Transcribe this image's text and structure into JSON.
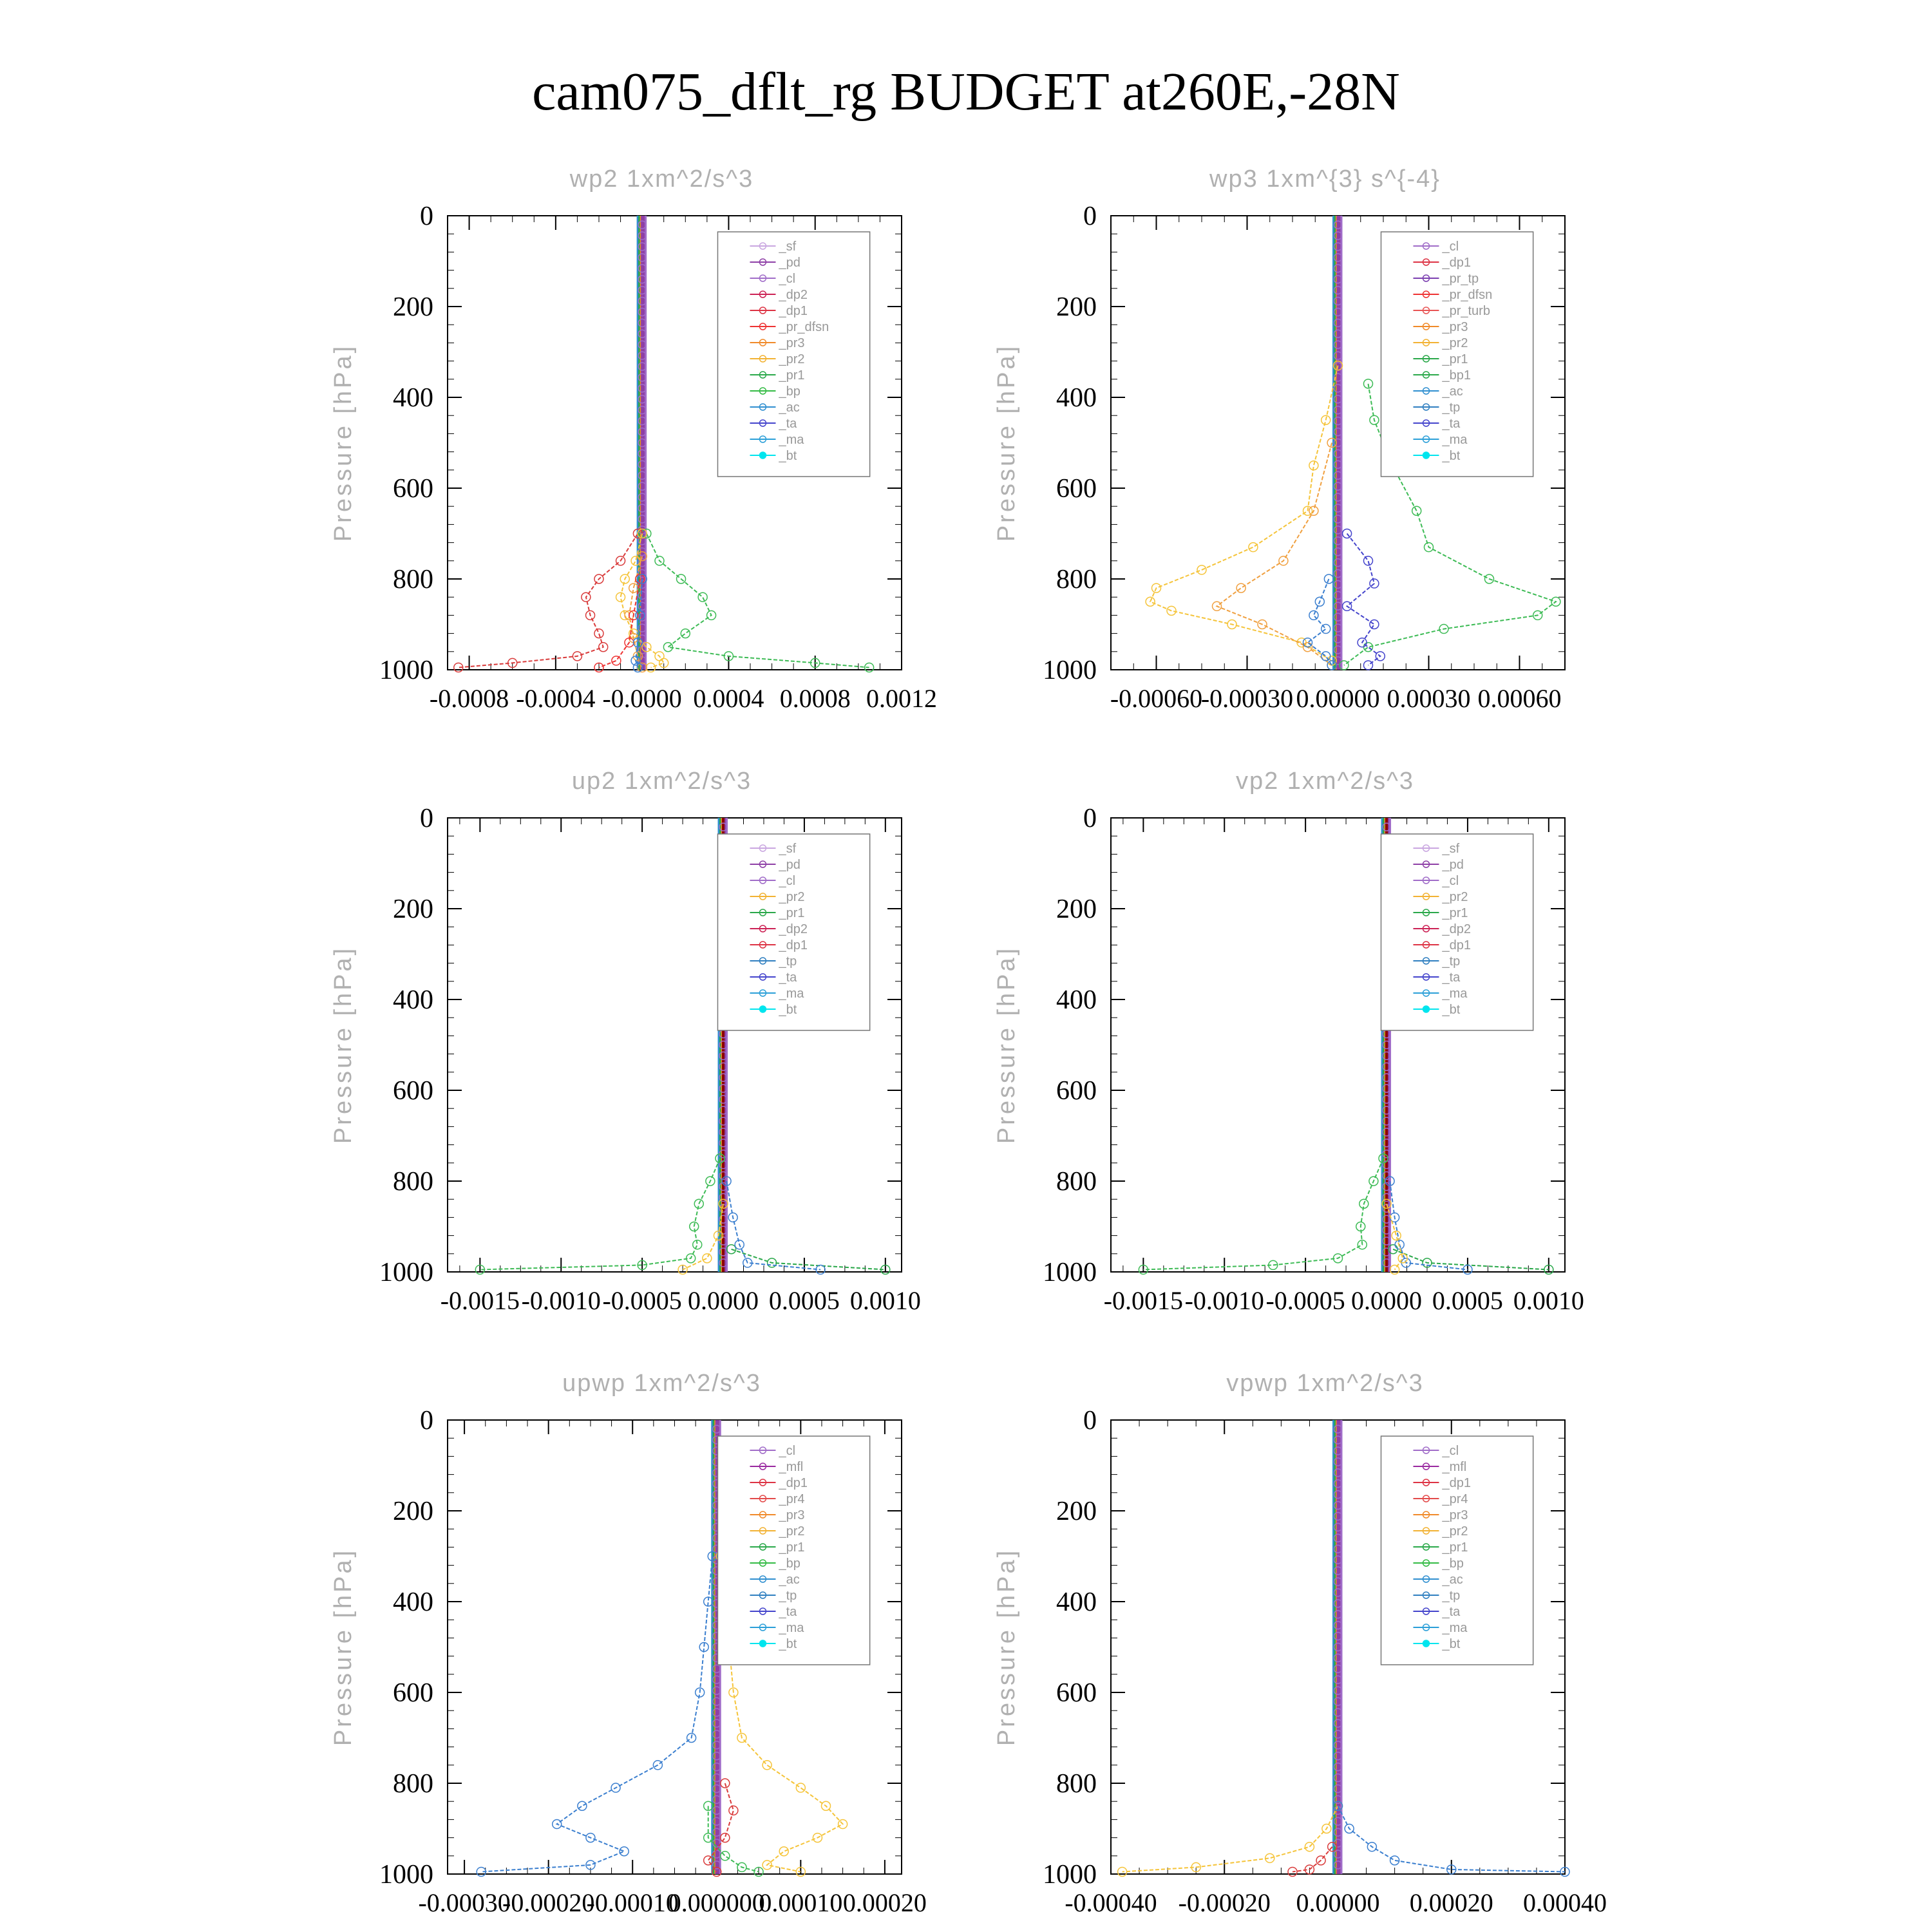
{
  "figure": {
    "title": "cam075_dflt_rg  BUDGET at260E,-28N"
  },
  "colors": {
    "_sf": "#c9a6e0",
    "_pd": "#8e3fa6",
    "_cl": "#a06cc8",
    "_dp2": "#cc2255",
    "_dp1": "#dd3344",
    "_pr_dfsn": "#ee3333",
    "_pr3": "#f08a2a",
    "_pr2": "#f2b233",
    "_pr1": "#2aa84a",
    "_bp": "#33bb44",
    "_ac": "#2f8fd0",
    "_ta": "#4444cc",
    "_ma": "#2b9fd8",
    "_bt": "#00e5ee",
    "_tp": "#2f7fc0",
    "_mfl": "#9a2aa0",
    "_pr4": "#e34a4a",
    "_pr_tp": "#7b3fb0",
    "_pr_turb": "#e85555",
    "_bp1": "#2aa84a",
    "axis": "#000000",
    "label_gray": "#b0b0b0",
    "col_yellow": "#f5c43a",
    "col_green": "#3dbb55",
    "col_orange": "#f0a040",
    "col_red": "#d93b3b",
    "col_blue": "#3b7fcf",
    "col_darkred": "#8b0000"
  },
  "chart_data": [
    {
      "type": "line",
      "title": "wp2   1xm^2/s^3",
      "ylabel": "Pressure [hPa]",
      "xlim": [
        -0.0009,
        0.0012
      ],
      "ylim": [
        1000,
        0
      ],
      "xticks": [
        -0.0008,
        -0.0004,
        0.0,
        0.0004,
        0.0008,
        0.0012
      ],
      "xtick_labels": [
        "-0.0008",
        "-0.0004",
        "-0.0000",
        "0.0004",
        "0.0008",
        "0.0012"
      ],
      "yticks": [
        0,
        200,
        400,
        600,
        800,
        1000
      ],
      "ytick_labels": [
        "0",
        "200",
        "400",
        "600",
        "800",
        "1000"
      ],
      "legend": [
        "_sf",
        "_pd",
        "_cl",
        "_dp2",
        "_dp1",
        "_pr_dfsn",
        "_pr3",
        "_pr2",
        "_pr1",
        "_bp",
        "_ac",
        "_ta",
        "_ma",
        "_bt"
      ],
      "legend_placement": "top-right",
      "series": [
        {
          "name": "_bp",
          "color_key": "col_green",
          "p": [
            700,
            760,
            800,
            840,
            880,
            920,
            950,
            970,
            985,
            995
          ],
          "x": [
            2e-05,
            8e-05,
            0.00018,
            0.00028,
            0.00032,
            0.0002,
            0.00012,
            0.0004,
            0.0008,
            0.00105
          ]
        },
        {
          "name": "_dp1",
          "color_key": "col_red",
          "p": [
            700,
            760,
            800,
            840,
            880,
            920,
            950,
            970,
            985,
            995
          ],
          "x": [
            -2e-05,
            -0.0001,
            -0.0002,
            -0.00026,
            -0.00024,
            -0.0002,
            -0.00018,
            -0.0003,
            -0.0006,
            -0.00085
          ]
        },
        {
          "name": "_pr2",
          "color_key": "col_yellow",
          "p": [
            700,
            760,
            800,
            840,
            880,
            920,
            950,
            970,
            985,
            995
          ],
          "x": [
            0.0,
            -3e-05,
            -8e-05,
            -0.0001,
            -8e-05,
            -4e-05,
            2e-05,
            8e-05,
            0.0001,
            4e-05
          ]
        },
        {
          "name": "_pr3",
          "color_key": "col_orange",
          "p": [
            750,
            820,
            880,
            930,
            970,
            995
          ],
          "x": [
            0.0,
            -4e-05,
            -6e-05,
            -4e-05,
            -2e-05,
            0.0
          ]
        },
        {
          "name": "_pr_dfsn",
          "color_key": "_pr_dfsn",
          "p": [
            800,
            880,
            940,
            980,
            995
          ],
          "x": [
            -1e-05,
            -4e-05,
            -6e-05,
            -0.00012,
            -0.0002
          ]
        },
        {
          "name": "_ac",
          "color_key": "col_blue",
          "p": [
            800,
            880,
            940,
            980,
            995
          ],
          "x": [
            0.0,
            -1e-05,
            -2e-05,
            -3e-05,
            -2e-05
          ]
        }
      ]
    },
    {
      "type": "line",
      "title": "wp3   1xm^{3} s^{-4}",
      "ylabel": "Pressure [hPa]",
      "xlim": [
        -0.00075,
        0.00075
      ],
      "ylim": [
        1000,
        0
      ],
      "xticks": [
        -0.0006,
        -0.0003,
        0.0,
        0.0003,
        0.0006
      ],
      "xtick_labels": [
        "-0.00060",
        "-0.00030",
        "0.00000",
        "0.00030",
        "0.00060"
      ],
      "yticks": [
        0,
        200,
        400,
        600,
        800,
        1000
      ],
      "ytick_labels": [
        "0",
        "200",
        "400",
        "600",
        "800",
        "1000"
      ],
      "legend": [
        "_cl",
        "_dp1",
        "_pr_tp",
        "_pr_dfsn",
        "_pr_turb",
        "_pr3",
        "_pr2",
        "_pr1",
        "_bp1",
        "_ac",
        "_tp",
        "_ta",
        "_ma",
        "_bt"
      ],
      "legend_placement": "top-right",
      "series": [
        {
          "name": "_bp1",
          "color_key": "col_green",
          "p": [
            370,
            450,
            550,
            650,
            730,
            800,
            850,
            880,
            910,
            950,
            990
          ],
          "x": [
            0.0001,
            0.00012,
            0.00018,
            0.00026,
            0.0003,
            0.0005,
            0.00072,
            0.00066,
            0.00035,
            0.0001,
            2e-05
          ]
        },
        {
          "name": "_pr1",
          "color_key": "col_yellow",
          "p": [
            330,
            450,
            550,
            650,
            730,
            780,
            820,
            850,
            870,
            900,
            940,
            980
          ],
          "x": [
            0.0,
            -4e-05,
            -8e-05,
            -0.0001,
            -0.00028,
            -0.00045,
            -0.0006,
            -0.00062,
            -0.00055,
            -0.00035,
            -0.00012,
            -2e-05
          ]
        },
        {
          "name": "_pr2",
          "color_key": "col_orange",
          "p": [
            500,
            650,
            760,
            820,
            860,
            900,
            950,
            990
          ],
          "x": [
            -2e-05,
            -8e-05,
            -0.00018,
            -0.00032,
            -0.0004,
            -0.00025,
            -0.0001,
            -2e-05
          ]
        },
        {
          "name": "_ta",
          "color_key": "_ta",
          "p": [
            700,
            760,
            810,
            860,
            900,
            940,
            970,
            990
          ],
          "x": [
            3e-05,
            0.0001,
            0.00012,
            3e-05,
            0.00012,
            8e-05,
            0.00014,
            0.0001
          ]
        },
        {
          "name": "_tp",
          "color_key": "col_blue",
          "p": [
            800,
            850,
            880,
            910,
            940,
            970,
            990
          ],
          "x": [
            -3e-05,
            -6e-05,
            -8e-05,
            -4e-05,
            -0.0001,
            -4e-05,
            -2e-05
          ]
        }
      ]
    },
    {
      "type": "line",
      "title": "up2   1xm^2/s^3",
      "ylabel": "Pressure [hPa]",
      "xlim": [
        -0.0017,
        0.0011
      ],
      "ylim": [
        1000,
        0
      ],
      "xticks": [
        -0.0015,
        -0.001,
        -0.0005,
        0.0,
        0.0005,
        0.001
      ],
      "xtick_labels": [
        "-0.0015",
        "-0.0010",
        "-0.0005",
        "0.0000",
        "0.0005",
        "0.0010"
      ],
      "yticks": [
        0,
        200,
        400,
        600,
        800,
        1000
      ],
      "ytick_labels": [
        "0",
        "200",
        "400",
        "600",
        "800",
        "1000"
      ],
      "legend": [
        "_sf",
        "_pd",
        "_cl",
        "_pr2",
        "_pr1",
        "_dp2",
        "_dp1",
        "_tp",
        "_ta",
        "_ma",
        "_bt"
      ],
      "legend_placement": "top-right",
      "series": [
        {
          "name": "_dp1",
          "color_key": "col_green",
          "p": [
            750,
            800,
            850,
            900,
            940,
            970,
            985,
            995
          ],
          "x": [
            -2e-05,
            -8e-05,
            -0.00015,
            -0.00018,
            -0.00016,
            -0.0002,
            -0.0005,
            -0.0015
          ]
        },
        {
          "name": "_dp2",
          "color_key": "_pr1",
          "p": [
            950,
            980,
            995
          ],
          "x": [
            5e-05,
            0.0003,
            0.001
          ]
        },
        {
          "name": "_tp",
          "color_key": "col_blue",
          "p": [
            800,
            880,
            940,
            980,
            995
          ],
          "x": [
            2e-05,
            6e-05,
            0.0001,
            0.00015,
            0.0006
          ]
        },
        {
          "name": "_pr1",
          "color_key": "col_yellow",
          "p": [
            850,
            920,
            970,
            995
          ],
          "x": [
            0.0,
            -3e-05,
            -0.0001,
            -0.00025
          ]
        }
      ]
    },
    {
      "type": "line",
      "title": "vp2   1xm^2/s^3",
      "ylabel": "Pressure [hPa]",
      "xlim": [
        -0.0017,
        0.0011
      ],
      "ylim": [
        1000,
        0
      ],
      "xticks": [
        -0.0015,
        -0.001,
        -0.0005,
        0.0,
        0.0005,
        0.001
      ],
      "xtick_labels": [
        "-0.0015",
        "-0.0010",
        "-0.0005",
        "0.0000",
        "0.0005",
        "0.0010"
      ],
      "yticks": [
        0,
        200,
        400,
        600,
        800,
        1000
      ],
      "ytick_labels": [
        "0",
        "200",
        "400",
        "600",
        "800",
        "1000"
      ],
      "legend": [
        "_sf",
        "_pd",
        "_cl",
        "_pr2",
        "_pr1",
        "_dp2",
        "_dp1",
        "_tp",
        "_ta",
        "_ma",
        "_bt"
      ],
      "legend_placement": "top-right",
      "series": [
        {
          "name": "_dp1",
          "color_key": "col_green",
          "p": [
            750,
            800,
            850,
            900,
            940,
            970,
            985,
            995
          ],
          "x": [
            -2e-05,
            -8e-05,
            -0.00014,
            -0.00016,
            -0.00015,
            -0.0003,
            -0.0007,
            -0.0015
          ]
        },
        {
          "name": "_dp2",
          "color_key": "_pr1",
          "p": [
            950,
            980,
            995
          ],
          "x": [
            4e-05,
            0.00025,
            0.001
          ]
        },
        {
          "name": "_tp",
          "color_key": "col_blue",
          "p": [
            800,
            880,
            940,
            980,
            995
          ],
          "x": [
            2e-05,
            5e-05,
            8e-05,
            0.00012,
            0.0005
          ]
        },
        {
          "name": "_pr1",
          "color_key": "col_yellow",
          "p": [
            850,
            920,
            970,
            995
          ],
          "x": [
            0.0,
            6e-05,
            0.0001,
            5e-05
          ]
        }
      ]
    },
    {
      "type": "line",
      "title": "upwp   1xm^2/s^3",
      "ylabel": "Pressure [hPa]",
      "xlim": [
        -0.00032,
        0.00022
      ],
      "ylim": [
        1000,
        0
      ],
      "xticks": [
        -0.0003,
        -0.0002,
        -0.0001,
        0.0,
        0.0001,
        0.0002
      ],
      "xtick_labels": [
        "-0.00030",
        "-0.00020",
        "-0.00010",
        "0.000000",
        "0.00010",
        "0.00020"
      ],
      "yticks": [
        0,
        200,
        400,
        600,
        800,
        1000
      ],
      "ytick_labels": [
        "0",
        "200",
        "400",
        "600",
        "800",
        "1000"
      ],
      "legend": [
        "_cl",
        "_mfl",
        "_dp1",
        "_pr4",
        "_pr3",
        "_pr2",
        "_pr1",
        "_bp",
        "_ac",
        "_tp",
        "_ta",
        "_ma",
        "_bt"
      ],
      "legend_placement": "top-right",
      "series": [
        {
          "name": "_tp",
          "color_key": "col_blue",
          "p": [
            300,
            400,
            500,
            600,
            700,
            760,
            810,
            850,
            890,
            920,
            950,
            980,
            995
          ],
          "x": [
            -5e-06,
            -1e-05,
            -1.5e-05,
            -2e-05,
            -3e-05,
            -7e-05,
            -0.00012,
            -0.00016,
            -0.00019,
            -0.00015,
            -0.00011,
            -0.00015,
            -0.00028
          ]
        },
        {
          "name": "_pr1",
          "color_key": "col_yellow",
          "p": [
            300,
            400,
            500,
            600,
            700,
            760,
            810,
            850,
            890,
            920,
            950,
            980,
            995
          ],
          "x": [
            5e-06,
            1e-05,
            1.5e-05,
            2e-05,
            3e-05,
            6e-05,
            0.0001,
            0.00013,
            0.00015,
            0.00012,
            8e-05,
            6e-05,
            0.0001
          ]
        },
        {
          "name": "_dp1",
          "color_key": "col_red",
          "p": [
            800,
            860,
            920,
            970,
            995
          ],
          "x": [
            1e-05,
            2e-05,
            1e-05,
            -1e-05,
            0.0
          ]
        },
        {
          "name": "_bp",
          "color_key": "col_green",
          "p": [
            850,
            920,
            960,
            985,
            995
          ],
          "x": [
            -1e-05,
            -1e-05,
            1e-05,
            3e-05,
            5e-05
          ]
        }
      ]
    },
    {
      "type": "line",
      "title": "vpwp   1xm^2/s^3",
      "ylabel": "Pressure [hPa]",
      "xlim": [
        -0.0004,
        0.0004
      ],
      "ylim": [
        1000,
        0
      ],
      "xticks": [
        -0.0004,
        -0.0002,
        0.0,
        0.0002,
        0.0004
      ],
      "xtick_labels": [
        "-0.00040",
        "-0.00020",
        "0.00000",
        "0.00020",
        "0.00040"
      ],
      "yticks": [
        0,
        200,
        400,
        600,
        800,
        1000
      ],
      "ytick_labels": [
        "0",
        "200",
        "400",
        "600",
        "800",
        "1000"
      ],
      "legend": [
        "_cl",
        "_mfl",
        "_dp1",
        "_pr4",
        "_pr3",
        "_pr2",
        "_pr1",
        "_bp",
        "_ac",
        "_tp",
        "_ta",
        "_ma",
        "_bt"
      ],
      "legend_placement": "top-right",
      "series": [
        {
          "name": "_pr1",
          "color_key": "col_yellow",
          "p": [
            850,
            900,
            940,
            965,
            985,
            995
          ],
          "x": [
            0.0,
            -2e-05,
            -5e-05,
            -0.00012,
            -0.00025,
            -0.00038
          ]
        },
        {
          "name": "_tp",
          "color_key": "col_blue",
          "p": [
            850,
            900,
            940,
            970,
            990,
            995
          ],
          "x": [
            0.0,
            2e-05,
            6e-05,
            0.0001,
            0.0002,
            0.0004
          ]
        },
        {
          "name": "_dp1",
          "color_key": "col_red",
          "p": [
            940,
            970,
            990,
            995
          ],
          "x": [
            -1e-05,
            -3e-05,
            -5e-05,
            -8e-05
          ]
        }
      ]
    }
  ]
}
